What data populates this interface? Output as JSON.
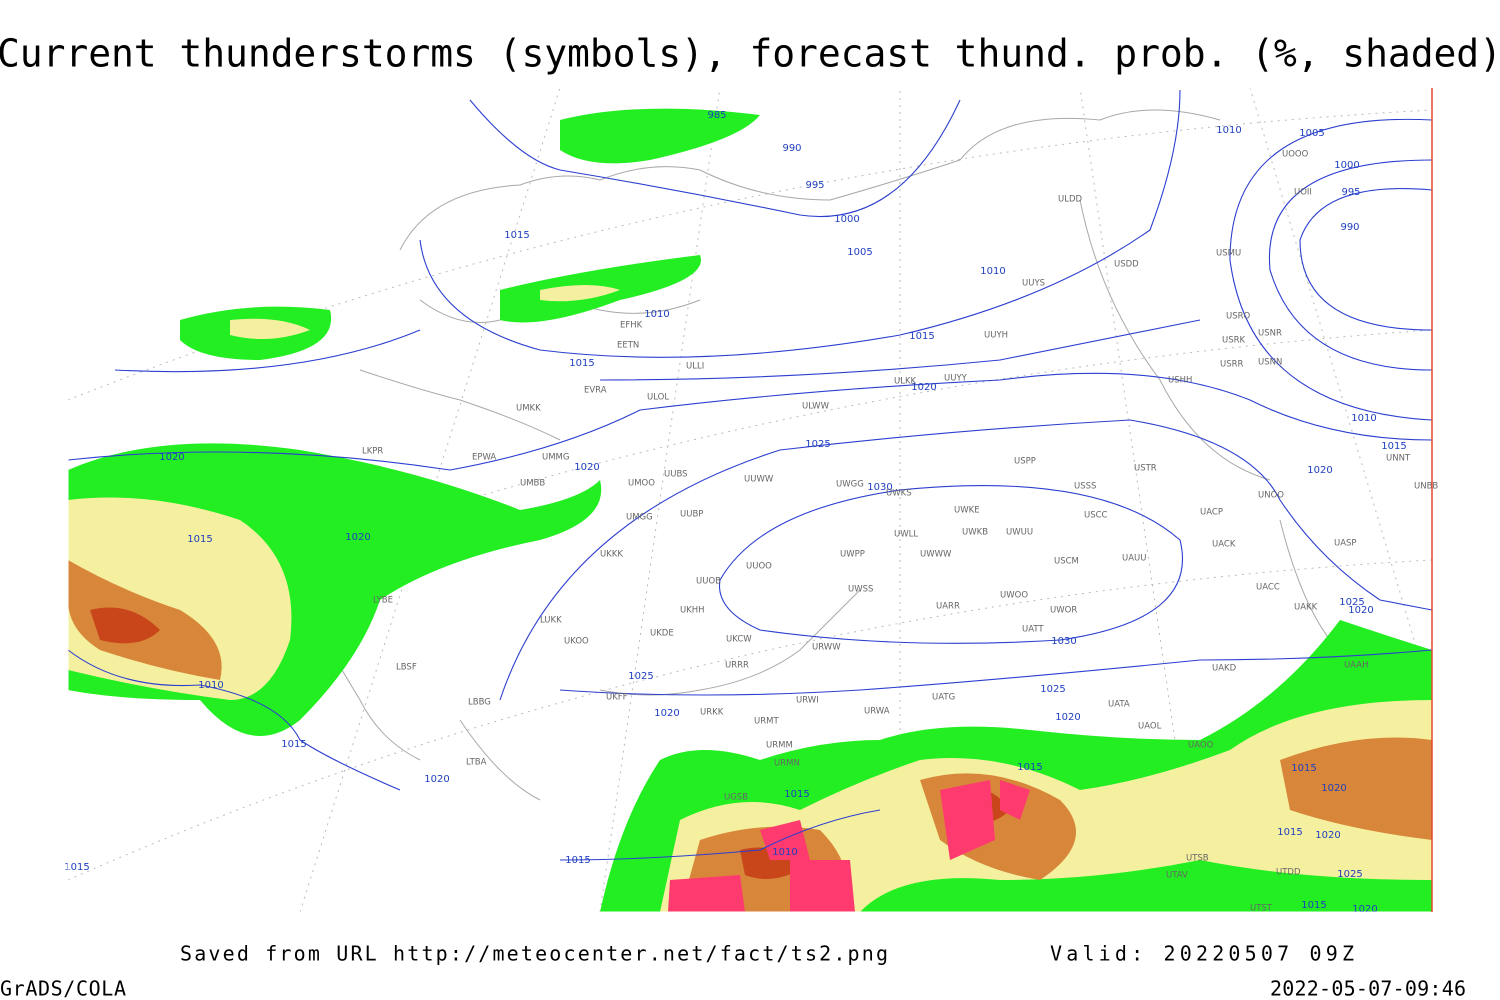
{
  "title": "Current thunderstorms (symbols), forecast thund. prob. (%, shaded)",
  "footer": {
    "saved": "Saved from URL http://meteocenter.net/fact/ts2.png",
    "valid": "Valid: 20220507 09Z",
    "software": "GrADS/COLA",
    "timestamp": "2022-05-07-09:46"
  },
  "isobar_labels": [
    "985",
    "990",
    "995",
    "1000",
    "1005",
    "1010",
    "1015",
    "1020",
    "1025",
    "1030",
    "1030",
    "1025",
    "1020",
    "1015",
    "1010",
    "1005",
    "1000",
    "995",
    "990",
    "1010",
    "1015",
    "1020",
    "1025",
    "1020",
    "1015",
    "1010",
    "1015",
    "1020",
    "1020",
    "1015",
    "1020",
    "1010",
    "1015",
    "1020",
    "1025",
    "1020",
    "1015",
    "1010",
    "1015",
    "1015",
    "1015",
    "1020",
    "1015",
    "1020",
    "1025",
    "1015",
    "1020"
  ],
  "stations": [
    "ULDD",
    "UUYS",
    "USDD",
    "USMU",
    "EFHK",
    "EETN",
    "EVRA",
    "ULOL",
    "UMKK",
    "EPWA",
    "UMMG",
    "UMBB",
    "UMOO",
    "UUBS",
    "UUWW",
    "UMGG",
    "UUBP",
    "UKKK",
    "UUOB",
    "UUOO",
    "UKHH",
    "UKDE",
    "UKOO",
    "LUKK",
    "UKCW",
    "URRR",
    "UKFF",
    "URKK",
    "URMT",
    "URMM",
    "URMN",
    "UGSB",
    "LBSF",
    "LBBG",
    "LTBA",
    "LYBE",
    "LKPR",
    "ULLI",
    "ULWW",
    "ULKK",
    "UUYY",
    "UUYH",
    "UWGG",
    "UWKS",
    "UWKE",
    "UWKB",
    "UWUU",
    "UWLL",
    "UWWW",
    "UWPP",
    "USCM",
    "UAUU",
    "USCC",
    "USSS",
    "USTR",
    "USPP",
    "UWSS",
    "UARR",
    "UWOO",
    "UWOR",
    "UATT",
    "URWA",
    "UATG",
    "UATA",
    "URWI",
    "URWW",
    "UAOL",
    "UACC",
    "UAKK",
    "UACK",
    "UASP",
    "UAKD",
    "UAAH",
    "UAOO",
    "UNBB",
    "UNNT",
    "UNOO",
    "USHH",
    "USRR",
    "USNN",
    "USRK",
    "USRO",
    "USNR",
    "UOOO",
    "UOII",
    "UACP",
    "UTSB",
    "UTAV",
    "UTST",
    "UTDD"
  ]
}
